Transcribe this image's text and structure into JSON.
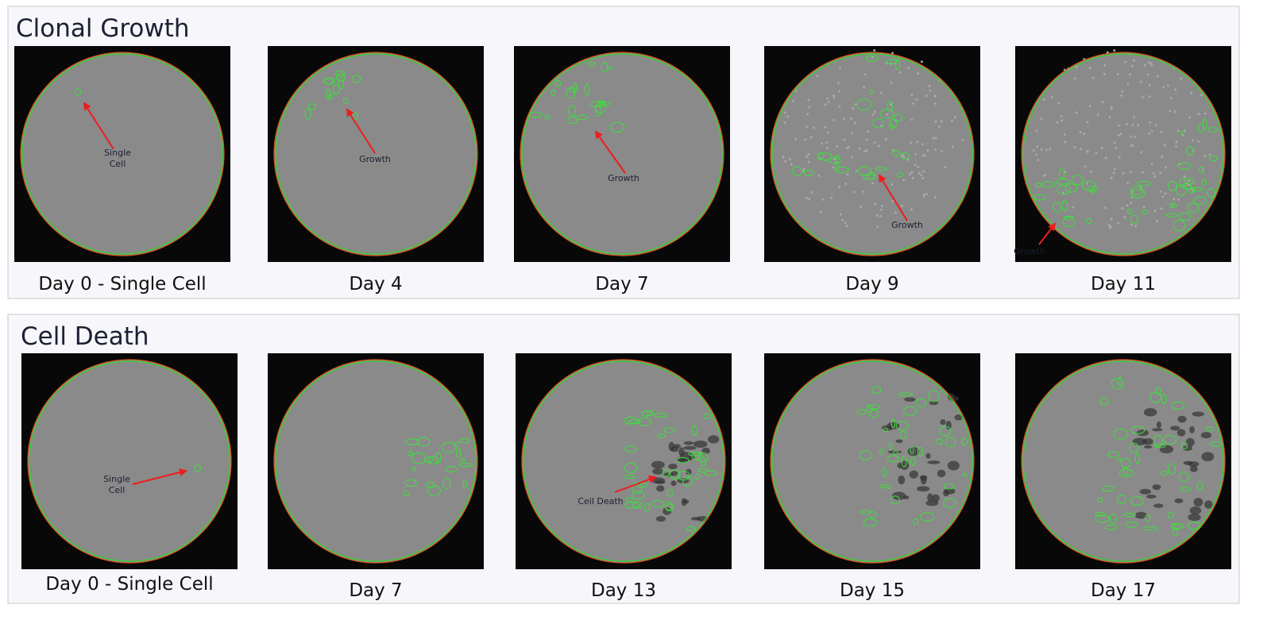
{
  "panels": [
    {
      "title": "Clonal Growth",
      "images": [
        {
          "caption": "Day 0 - Single Cell",
          "annotation": [
            "Single",
            "Cell"
          ]
        },
        {
          "caption": "Day 4",
          "annotation": [
            "Growth"
          ]
        },
        {
          "caption": "Day 7",
          "annotation": [
            "Growth"
          ]
        },
        {
          "caption": "Day 9",
          "annotation": [
            "Growth"
          ]
        },
        {
          "caption": "Day 11",
          "annotation": [
            "Growth"
          ]
        }
      ]
    },
    {
      "title": "Cell Death",
      "images": [
        {
          "caption": "Day 0 - Single Cell",
          "annotation": [
            "Single",
            "Cell"
          ]
        },
        {
          "caption": "Day 7"
        },
        {
          "caption": "Day 13",
          "annotation": [
            "Cell Death"
          ]
        },
        {
          "caption": "Day 15"
        },
        {
          "caption": "Day 17"
        }
      ]
    }
  ]
}
